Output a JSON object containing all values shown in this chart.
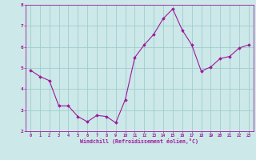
{
  "x": [
    0,
    1,
    2,
    3,
    4,
    5,
    6,
    7,
    8,
    9,
    10,
    11,
    12,
    13,
    14,
    15,
    16,
    17,
    18,
    19,
    20,
    21,
    22,
    23
  ],
  "y": [
    4.9,
    4.6,
    4.4,
    3.2,
    3.2,
    2.7,
    2.45,
    2.75,
    2.7,
    2.4,
    3.5,
    5.5,
    6.1,
    6.6,
    7.35,
    7.8,
    6.8,
    6.1,
    4.85,
    5.05,
    5.45,
    5.55,
    5.95,
    6.1
  ],
  "line_color": "#9b1a9b",
  "marker": "D",
  "marker_size": 1.8,
  "bg_color": "#cce8e8",
  "grid_color": "#a0cccc",
  "xlabel": "Windchill (Refroidissement éolien,°C)",
  "xlabel_color": "#9b1a9b",
  "tick_color": "#9b1a9b",
  "ylim": [
    2.0,
    8.0
  ],
  "xlim": [
    -0.5,
    23.5
  ],
  "yticks": [
    2,
    3,
    4,
    5,
    6,
    7,
    8
  ],
  "xticks": [
    0,
    1,
    2,
    3,
    4,
    5,
    6,
    7,
    8,
    9,
    10,
    11,
    12,
    13,
    14,
    15,
    16,
    17,
    18,
    19,
    20,
    21,
    22,
    23
  ]
}
